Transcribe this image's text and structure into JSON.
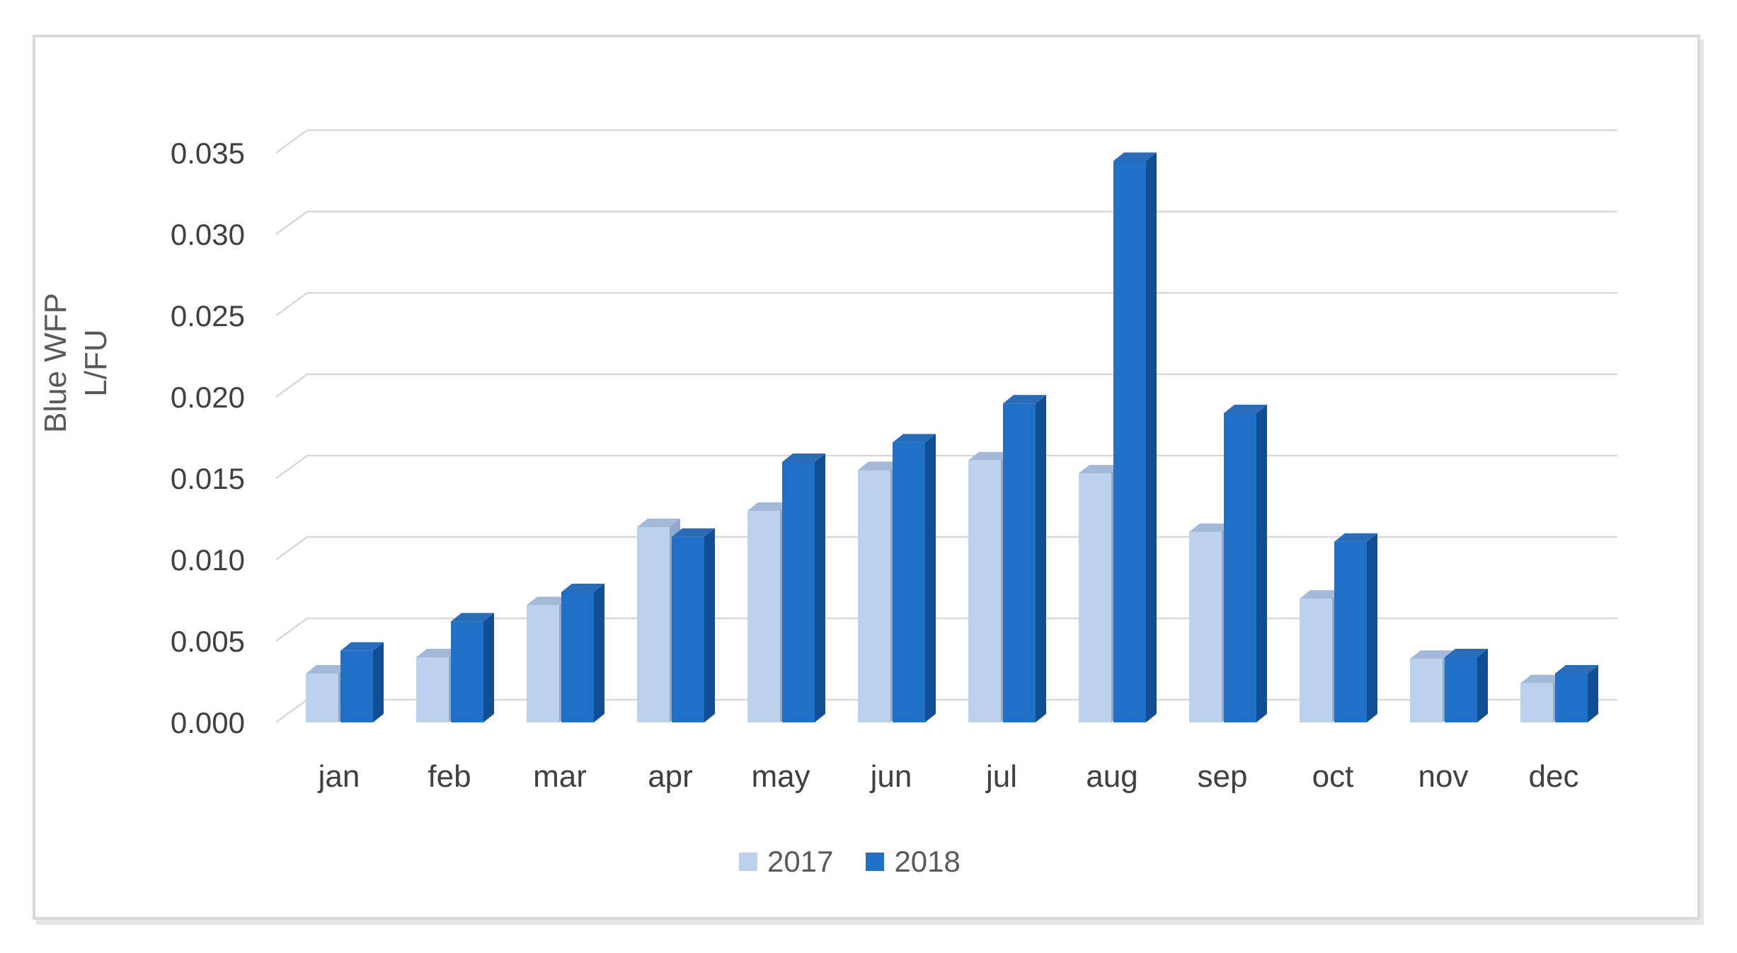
{
  "chart_data": {
    "type": "bar",
    "style": "3d-clustered-column",
    "title": "",
    "ylabel_lines": [
      "Blue WFP",
      "L/FU"
    ],
    "xlabel": "",
    "categories": [
      "jan",
      "feb",
      "mar",
      "apr",
      "may",
      "jun",
      "jul",
      "aug",
      "sep",
      "oct",
      "nov",
      "dec"
    ],
    "series": [
      {
        "name": "2017",
        "color_front": "#bcd1ec",
        "color_top": "#a3b9da",
        "color_side": "#8fa9cc",
        "values": [
          0.003,
          0.004,
          0.0072,
          0.012,
          0.013,
          0.0155,
          0.0161,
          0.0153,
          0.0117,
          0.0076,
          0.0039,
          0.0024
        ]
      },
      {
        "name": "2018",
        "color_front": "#1f70c6",
        "color_top": "#2a6cb8",
        "color_side": "#114e94",
        "values": [
          0.0044,
          0.0062,
          0.008,
          0.0114,
          0.016,
          0.0172,
          0.0196,
          0.0345,
          0.019,
          0.0111,
          0.004,
          0.003
        ]
      }
    ],
    "y_tick_labels": [
      "0.000",
      "0.005",
      "0.010",
      "0.015",
      "0.020",
      "0.025",
      "0.030",
      "0.035"
    ],
    "y_tick_step": 0.005,
    "ylim": [
      0,
      0.035
    ],
    "grid": true,
    "legend_position": "bottom",
    "colors": {
      "grid": "#d8d8d8",
      "tick_text": "#404040",
      "month_text": "#404040",
      "legend_text": "#595959",
      "axis_title_text": "#595959",
      "box_border": "#d9d9d9",
      "background": "#ffffff"
    }
  }
}
